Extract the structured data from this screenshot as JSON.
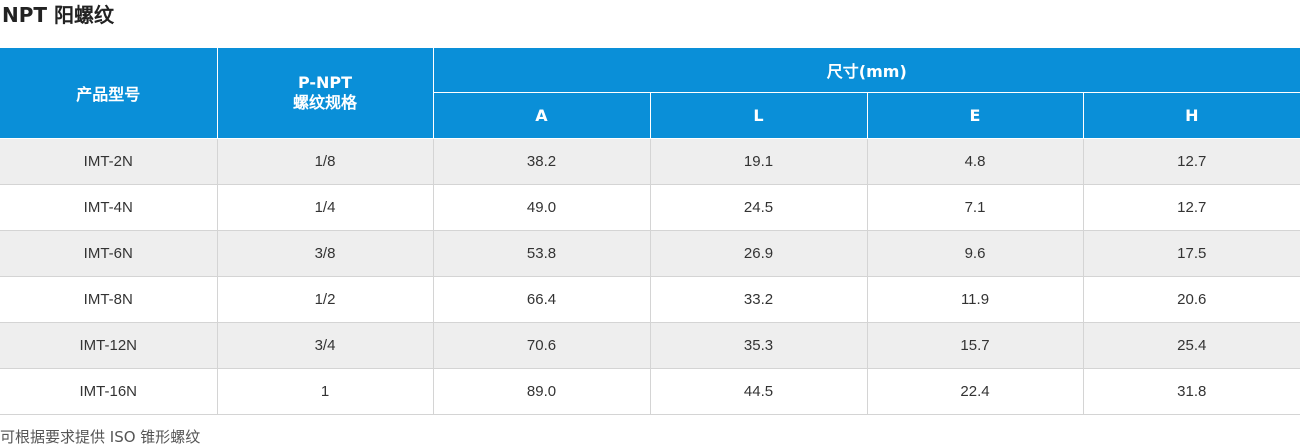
{
  "title": "NPT 阳螺纹",
  "header": {
    "model_label": "产品型号",
    "thread_label_line1": "P-NPT",
    "thread_label_line2": "螺纹规格",
    "dimension_group_label": "尺寸(mm)",
    "dimension_columns": [
      "A",
      "L",
      "E",
      "H"
    ]
  },
  "rows": [
    {
      "model": "IMT-2N",
      "thread": "1/8",
      "A": "38.2",
      "L": "19.1",
      "E": "4.8",
      "H": "12.7"
    },
    {
      "model": "IMT-4N",
      "thread": "1/4",
      "A": "49.0",
      "L": "24.5",
      "E": "7.1",
      "H": "12.7"
    },
    {
      "model": "IMT-6N",
      "thread": "3/8",
      "A": "53.8",
      "L": "26.9",
      "E": "9.6",
      "H": "17.5"
    },
    {
      "model": "IMT-8N",
      "thread": "1/2",
      "A": "66.4",
      "L": "33.2",
      "E": "11.9",
      "H": "20.6"
    },
    {
      "model": "IMT-12N",
      "thread": "3/4",
      "A": "70.6",
      "L": "35.3",
      "E": "15.7",
      "H": "25.4"
    },
    {
      "model": "IMT-16N",
      "thread": "1",
      "A": "89.0",
      "L": "44.5",
      "E": "22.4",
      "H": "31.8"
    }
  ],
  "footnote": "可根据要求提供 ISO 锥形螺纹",
  "colors": {
    "header_bg": "#0a8fd8",
    "row_alt_bg": "#eeeeee"
  }
}
